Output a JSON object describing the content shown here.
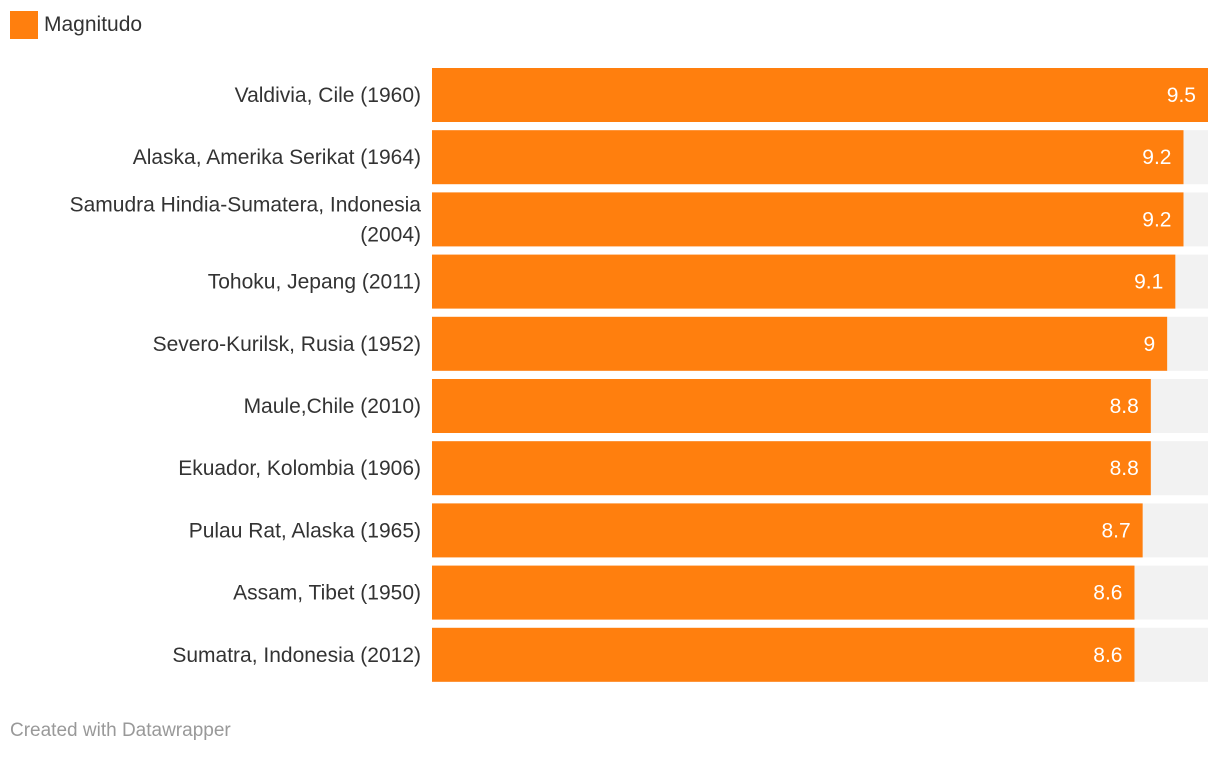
{
  "legend": {
    "label": "Magnitudo",
    "color": "#ff7f0e"
  },
  "chart_data": {
    "type": "bar",
    "orientation": "horizontal",
    "categories": [
      [
        "Valdivia, Cile (1960)"
      ],
      [
        "Alaska, Amerika Serikat (1964)"
      ],
      [
        "Samudra Hindia-Sumatera, Indonesia",
        "(2004)"
      ],
      [
        "Tohoku, Jepang (2011)"
      ],
      [
        "Severo-Kurilsk, Rusia (1952)"
      ],
      [
        "Maule,Chile (2010)"
      ],
      [
        "Ekuador, Kolombia (1906)"
      ],
      [
        "Pulau Rat, Alaska (1965)"
      ],
      [
        "Assam, Tibet (1950)"
      ],
      [
        "Sumatra, Indonesia (2012)"
      ]
    ],
    "series": [
      {
        "name": "Magnitudo",
        "values": [
          9.5,
          9.2,
          9.2,
          9.1,
          9,
          8.8,
          8.8,
          8.7,
          8.6,
          8.6
        ],
        "labels": [
          "9.5",
          "9.2",
          "9.2",
          "9.1",
          "9",
          "8.8",
          "8.8",
          "8.7",
          "8.6",
          "8.6"
        ]
      }
    ],
    "xlim": [
      0,
      9.5
    ],
    "bar_color": "#ff7f0e",
    "track_color": "#f2f2f2",
    "grid": false,
    "legend_position": "top-left"
  },
  "footer": {
    "credit": "Created with Datawrapper"
  }
}
